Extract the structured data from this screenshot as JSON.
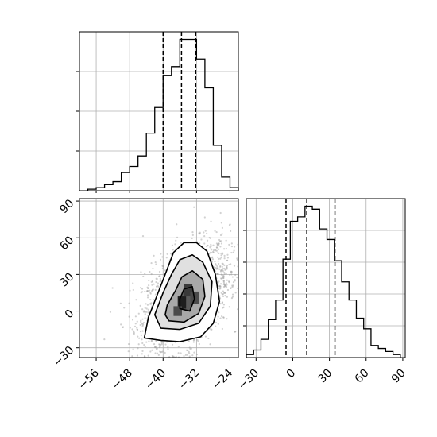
{
  "chart_data": [
    {
      "type": "histogram",
      "panel": "top-left",
      "variable": "x",
      "bin_edges": [
        -58,
        -56,
        -54,
        -52,
        -50,
        -48,
        -46,
        -44,
        -42,
        -40,
        -38,
        -36,
        -34,
        -32,
        -30,
        -28,
        -26,
        -24,
        -22
      ],
      "counts": [
        0.01,
        0.02,
        0.04,
        0.06,
        0.12,
        0.16,
        0.23,
        0.38,
        0.55,
        0.76,
        0.82,
        1.0,
        1.0,
        0.87,
        0.68,
        0.3,
        0.09,
        0.02
      ],
      "quantile_lines": [
        -40.0,
        -35.6,
        -32.2
      ],
      "xlim": [
        -60,
        -22
      ],
      "grid": true
    },
    {
      "type": "histogram2d",
      "panel": "bottom-left",
      "x_variable": "x",
      "y_variable": "y",
      "xlim": [
        -60,
        -22
      ],
      "ylim": [
        -38,
        92
      ],
      "x_ticks": [
        "−56",
        "−48",
        "−40",
        "−32",
        "−24"
      ],
      "x_tick_values": [
        -56,
        -48,
        -40,
        -32,
        -24
      ],
      "y_ticks": [
        "−30",
        "0",
        "30",
        "60",
        "90"
      ],
      "y_tick_values": [
        -30,
        0,
        30,
        60,
        90
      ],
      "scatter": {
        "mean": [
          -34.5,
          11
        ],
        "sd": [
          5.2,
          22
        ],
        "rho": 0.45,
        "n": 2400
      },
      "contours": [
        [
          [
            -44.5,
            -22
          ],
          [
            -40.5,
            -24
          ],
          [
            -36,
            -25
          ],
          [
            -31,
            -21
          ],
          [
            -28,
            -10
          ],
          [
            -26.5,
            8
          ],
          [
            -27.5,
            30
          ],
          [
            -29.5,
            49
          ],
          [
            -32,
            56
          ],
          [
            -35,
            56
          ],
          [
            -37.5,
            48
          ],
          [
            -39.5,
            30
          ],
          [
            -42,
            8
          ],
          [
            -43.5,
            -5
          ]
        ],
        [
          [
            -40.5,
            -14
          ],
          [
            -36,
            -15
          ],
          [
            -31.5,
            -10
          ],
          [
            -28.7,
            4
          ],
          [
            -28.3,
            24
          ],
          [
            -30.5,
            40
          ],
          [
            -33,
            46
          ],
          [
            -36,
            42
          ],
          [
            -38,
            30
          ],
          [
            -40,
            15
          ],
          [
            -42,
            -3
          ]
        ],
        [
          [
            -38.6,
            -8
          ],
          [
            -35,
            -9
          ],
          [
            -31.5,
            -2
          ],
          [
            -30,
            12
          ],
          [
            -30.5,
            26
          ],
          [
            -33,
            33
          ],
          [
            -35.5,
            28
          ],
          [
            -37,
            17
          ],
          [
            -39,
            5
          ],
          [
            -39.5,
            -3
          ]
        ],
        [
          [
            -36,
            2
          ],
          [
            -33.6,
            0
          ],
          [
            -32.5,
            10
          ],
          [
            -33,
            20
          ],
          [
            -35,
            18
          ],
          [
            -36,
            10
          ]
        ]
      ],
      "grid": true
    },
    {
      "type": "histogram",
      "panel": "bottom-right",
      "variable": "y",
      "bin_edges": [
        -38,
        -32,
        -26,
        -20,
        -14,
        -8,
        -2,
        4,
        10,
        16,
        22,
        28,
        34,
        40,
        46,
        52,
        58,
        64,
        70,
        76,
        82,
        88
      ],
      "counts": [
        0.02,
        0.05,
        0.12,
        0.25,
        0.38,
        0.65,
        0.9,
        0.93,
        1.0,
        0.98,
        0.85,
        0.78,
        0.64,
        0.5,
        0.38,
        0.26,
        0.19,
        0.08,
        0.06,
        0.04,
        0.02
      ],
      "quantile_lines": [
        -5.5,
        11.5,
        34.5
      ],
      "xlim": [
        -38,
        92
      ],
      "x_ticks": [
        "−30",
        "0",
        "30",
        "60",
        "90"
      ],
      "x_tick_values": [
        -30,
        0,
        30,
        60,
        90
      ],
      "grid": true
    }
  ]
}
